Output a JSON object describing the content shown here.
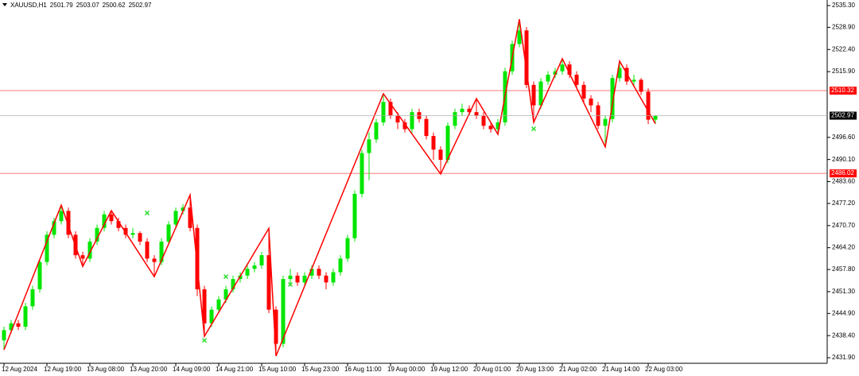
{
  "chart_data": {
    "type": "candlestick",
    "symbol": "XAUUSD,H1",
    "categories": [
      "12 Aug 2024",
      null,
      null,
      null,
      null,
      null,
      "12 Aug 19:00",
      null,
      null,
      null,
      null,
      null,
      "13 Aug 08:00",
      null,
      null,
      null,
      null,
      null,
      "13 Aug 20:00",
      null,
      null,
      null,
      null,
      null,
      "14 Aug 09:00",
      null,
      null,
      null,
      null,
      null,
      "14 Aug 21:00",
      null,
      null,
      null,
      null,
      null,
      "15 Aug 10:00",
      null,
      null,
      null,
      null,
      null,
      "15 Aug 23:00",
      null,
      null,
      null,
      null,
      null,
      "16 Aug 11:00",
      null,
      null,
      null,
      null,
      null,
      "19 Aug 00:00",
      null,
      null,
      null,
      null,
      null,
      "19 Aug 12:00",
      null,
      null,
      null,
      null,
      null,
      "20 Aug 01:00",
      null,
      null,
      null,
      null,
      null,
      "20 Aug 13:00",
      null,
      null,
      null,
      null,
      null,
      "21 Aug 02:00",
      null,
      null,
      null,
      null,
      null,
      "21 Aug 14:00",
      null,
      null,
      null,
      null,
      null,
      "22 Aug 03:00",
      null
    ],
    "open": [
      2437,
      2440,
      2442,
      2441,
      2447,
      2452,
      2460,
      2468,
      2472,
      2475,
      2468,
      2462,
      2461,
      2466,
      2470,
      2474,
      2472,
      2470,
      2468,
      2468.5,
      2466,
      2461,
      2460,
      2466,
      2471,
      2475,
      2476,
      2470,
      2452,
      2442,
      2446,
      2449,
      2452,
      2455,
      2456,
      2458,
      2459,
      2462,
      2446,
      2436,
      2455,
      2456,
      2454,
      2456,
      2458,
      2456,
      2454,
      2457,
      2461,
      2467,
      2480,
      2492,
      2496,
      2501,
      2507,
      2503,
      2501,
      2499,
      2504,
      2502,
      2497,
      2493,
      2490,
      2500,
      2504,
      2505,
      2504,
      2503,
      2500,
      2499,
      2501,
      2516,
      2524,
      2528,
      2512,
      2506,
      2513,
      2515,
      2516,
      2518,
      2515,
      2512,
      2508,
      2506,
      2500,
      2502,
      2514,
      2517,
      2513,
      2513.5,
      2510,
      2501.79
    ],
    "high": [
      2441,
      2443,
      2443,
      2448,
      2453,
      2461,
      2469,
      2473,
      2476.7,
      2476,
      2469,
      2463,
      2467,
      2471,
      2475,
      2475.1,
      2473,
      2471,
      2470,
      2469,
      2467,
      2462,
      2467,
      2472,
      2476,
      2477,
      2479.7,
      2471,
      2453,
      2447,
      2450,
      2453,
      2456,
      2457,
      2459,
      2460,
      2463,
      2469.9,
      2447,
      2456,
      2458,
      2457,
      2457,
      2459,
      2459,
      2457,
      2458,
      2462,
      2468,
      2481,
      2493,
      2498,
      2502,
      2509.4,
      2508,
      2504,
      2502,
      2505,
      2505,
      2503,
      2498,
      2494,
      2501,
      2505,
      2506.5,
      2506,
      2508,
      2504,
      2501,
      2502,
      2517,
      2525,
      2531.3,
      2529,
      2513,
      2514,
      2516,
      2517,
      2519.7,
      2519,
      2516,
      2513,
      2509,
      2507,
      2503,
      2515,
      2519,
      2518,
      2515,
      2514,
      2511,
      2503.07
    ],
    "low": [
      2434.2,
      2439,
      2440,
      2440,
      2446,
      2451,
      2459,
      2467,
      2471,
      2467,
      2461,
      2458.7,
      2460,
      2465,
      2469,
      2471,
      2469,
      2467,
      2467,
      2465,
      2460,
      2455.7,
      2459,
      2465,
      2470,
      2474,
      2469,
      2450,
      2438.2,
      2441,
      2445,
      2448,
      2451,
      2454,
      2455,
      2457,
      2458,
      2445,
      2432.4,
      2435,
      2453,
      2453,
      2453,
      2455,
      2455,
      2452,
      2453,
      2456,
      2460,
      2466,
      2479,
      2484,
      2495,
      2500,
      2502,
      2499,
      2498,
      2498,
      2501,
      2496,
      2490,
      2485.8,
      2489,
      2499,
      2503,
      2503,
      2502,
      2499,
      2498,
      2497.5,
      2500,
      2515,
      2523,
      2511,
      2501,
      2505,
      2512,
      2514,
      2515,
      2514,
      2511,
      2507,
      2504,
      2499,
      2493.8,
      2501,
      2513,
      2512,
      2512,
      2509,
      2500.5,
      2500.62
    ],
    "close": [
      2440,
      2442,
      2441,
      2447,
      2452,
      2460,
      2468,
      2472,
      2475,
      2468,
      2462,
      2461,
      2466,
      2470,
      2474,
      2472,
      2470,
      2468,
      2468.5,
      2466,
      2461,
      2460,
      2466,
      2471,
      2475,
      2476,
      2470,
      2452,
      2442,
      2446,
      2449,
      2452,
      2455,
      2456,
      2458,
      2459,
      2462,
      2446,
      2436,
      2455,
      2456,
      2454,
      2456,
      2458,
      2456,
      2454,
      2457,
      2461,
      2467,
      2480,
      2492,
      2496,
      2501,
      2507,
      2503,
      2501,
      2499,
      2504,
      2502,
      2497,
      2493,
      2490,
      2500,
      2504,
      2505,
      2504,
      2503,
      2500,
      2499,
      2501,
      2516,
      2524,
      2528,
      2512,
      2506,
      2513,
      2515,
      2516,
      2518,
      2515,
      2512,
      2508,
      2506,
      2500,
      2502,
      2514,
      2517,
      2513,
      2513.5,
      2510,
      2501.79,
      2502.97
    ],
    "up_color": "#00e600",
    "down_color": "#ff0000",
    "zigzag": {
      "color": "#ff0000",
      "x": [
        0,
        8,
        11,
        15,
        21,
        26,
        28,
        37,
        38,
        53,
        61,
        66,
        69,
        72,
        74,
        78,
        84,
        86,
        91
      ],
      "values": [
        2434.2,
        2476.7,
        2458.7,
        2475.1,
        2455.7,
        2479.7,
        2438.2,
        2469.9,
        2432.4,
        2509.4,
        2485.8,
        2508,
        2497.5,
        2531.3,
        2501,
        2519.7,
        2493.8,
        2519,
        2500.62
      ]
    },
    "markers": {
      "color": "#33dd33",
      "x": [
        20,
        28,
        31,
        40,
        74
      ],
      "values": [
        2474.4,
        2437,
        2455.7,
        2453.4,
        2499.1
      ]
    },
    "levels": [
      {
        "value": 2510.32,
        "color": "#ff0000"
      },
      {
        "value": 2486.02,
        "color": "#ff0000"
      }
    ],
    "current_price_color": "#000000",
    "ylim": [
      2430.27,
      2536.93
    ],
    "yticks": [
      {
        "value": 2535.3,
        "label": "2535.30"
      },
      {
        "value": 2528.9,
        "label": "2528.90"
      },
      {
        "value": 2522.4,
        "label": "2522.40"
      },
      {
        "value": 2515.9,
        "label": "2515.90"
      },
      {
        "value": 2496.6,
        "label": "2496.60"
      },
      {
        "value": 2490.1,
        "label": "2490.10"
      },
      {
        "value": 2483.6,
        "label": "2483.60"
      },
      {
        "value": 2477.2,
        "label": "2477.20"
      },
      {
        "value": 2470.7,
        "label": "2470.70"
      },
      {
        "value": 2464.2,
        "label": "2464.20"
      },
      {
        "value": 2457.8,
        "label": "2457.80"
      },
      {
        "value": 2451.3,
        "label": "2451.30"
      },
      {
        "value": 2444.9,
        "label": "2444.90"
      },
      {
        "value": 2438.4,
        "label": "2438.40"
      },
      {
        "value": 2431.9,
        "label": "2431.90"
      }
    ],
    "grid": false
  }
}
